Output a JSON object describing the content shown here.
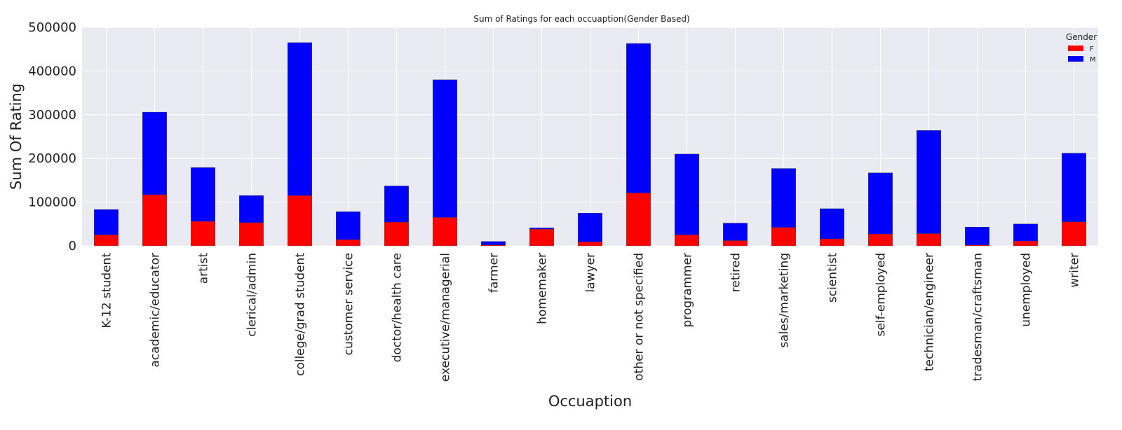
{
  "chart_data": {
    "type": "bar",
    "stacked": true,
    "title": "Sum of Ratings for each occuaption(Gender Based)",
    "xlabel": "Occuaption",
    "ylabel": "Sum Of Rating",
    "ylim": [
      0,
      500000
    ],
    "yticks": [
      0,
      100000,
      200000,
      300000,
      400000,
      500000
    ],
    "ytick_labels": [
      "0",
      "100000",
      "200000",
      "300000",
      "400000",
      "500000"
    ],
    "grid": true,
    "legend": {
      "title": "Gender",
      "position": "top-right"
    },
    "categories": [
      "K-12 student",
      "academic/educator",
      "artist",
      "clerical/admin",
      "college/grad student",
      "customer service",
      "doctor/health care",
      "executive/managerial",
      "farmer",
      "homemaker",
      "lawyer",
      "other or not specified",
      "programmer",
      "retired",
      "sales/marketing",
      "scientist",
      "self-employed",
      "technician/engineer",
      "tradesman/craftsman",
      "unemployed",
      "writer"
    ],
    "series": [
      {
        "name": "F",
        "color": "#ff0000",
        "values": [
          25000,
          117000,
          56000,
          53000,
          115000,
          14000,
          54000,
          65000,
          2000,
          38000,
          9000,
          121000,
          25000,
          12000,
          42000,
          16000,
          27000,
          28000,
          2000,
          11000,
          55000
        ]
      },
      {
        "name": "M",
        "color": "#0000ff",
        "values": [
          58000,
          189000,
          123000,
          62000,
          350000,
          64000,
          83000,
          315000,
          8000,
          3000,
          66000,
          342000,
          185000,
          40000,
          135000,
          69000,
          140000,
          236000,
          41000,
          39000,
          157000
        ]
      }
    ],
    "colors": {
      "plot_background": "#eaeaf2",
      "grid": "#ffffff"
    }
  }
}
